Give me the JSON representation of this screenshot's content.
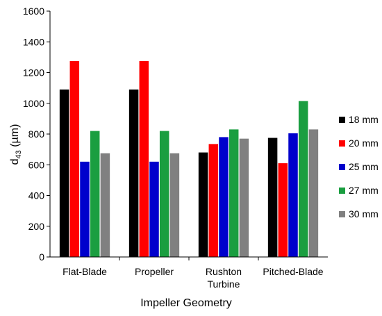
{
  "chart_data": {
    "type": "bar",
    "title": "",
    "xlabel": "Impeller Geometry",
    "ylabel_main": "d",
    "ylabel_sub": "43",
    "ylabel_unit": " (µm)",
    "ylim": [
      0,
      1600
    ],
    "yticks": [
      0,
      200,
      400,
      600,
      800,
      1000,
      1200,
      1400,
      1600
    ],
    "grid": false,
    "legend_position": "right",
    "categories": [
      {
        "line1": "Flat-Blade",
        "line2": ""
      },
      {
        "line1": "Propeller",
        "line2": ""
      },
      {
        "line1": "Rushton",
        "line2": "Turbine"
      },
      {
        "line1": "Pitched-Blade",
        "line2": ""
      }
    ],
    "series": [
      {
        "name": "18 mm",
        "color": "#000000",
        "values": [
          1090,
          1090,
          680,
          775
        ]
      },
      {
        "name": "20 mm",
        "color": "#ff0000",
        "values": [
          1275,
          1275,
          735,
          610
        ]
      },
      {
        "name": "25 mm",
        "color": "#0000cc",
        "values": [
          620,
          620,
          780,
          805
        ]
      },
      {
        "name": "27 mm",
        "color": "#1a9e40",
        "values": [
          820,
          820,
          830,
          1015
        ]
      },
      {
        "name": "30 mm",
        "color": "#808080",
        "values": [
          675,
          675,
          770,
          830
        ]
      }
    ]
  }
}
